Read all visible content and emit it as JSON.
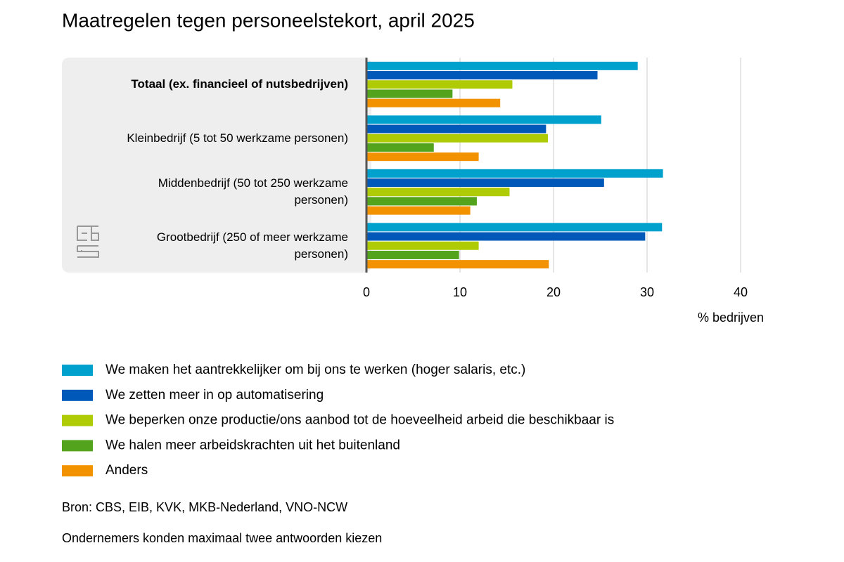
{
  "chart_data": {
    "type": "bar",
    "title": "Maatregelen tegen personeelstekort, april 2025",
    "categories": [
      "Totaal (ex. financieel of nutsbedrijven)",
      "Kleinbedrijf (5 tot 50 werkzame personen)",
      "Middenbedrijf (50 tot 250 werkzame personen)",
      "Grootbedrijf (250 of meer werkzame personen)"
    ],
    "series": [
      {
        "name": "We maken het aantrekkelijker om bij ons te werken (hoger salaris, etc.)",
        "color": "#00a1cd",
        "values": [
          29.0,
          25.1,
          31.7,
          31.6
        ]
      },
      {
        "name": "We zetten meer in op automatisering",
        "color": "#0058b8",
        "values": [
          24.7,
          19.2,
          25.4,
          29.8
        ]
      },
      {
        "name": "We beperken onze productie/ons aanbod tot de hoeveelheid arbeid die beschikbaar is",
        "color": "#afcb05",
        "values": [
          15.6,
          19.4,
          15.3,
          12.0
        ]
      },
      {
        "name": "We halen meer arbeidskrachten uit het buitenland",
        "color": "#53a31d",
        "values": [
          9.2,
          7.2,
          11.8,
          9.9
        ]
      },
      {
        "name": "Anders",
        "color": "#f39200",
        "values": [
          14.3,
          12.0,
          11.1,
          19.5
        ]
      }
    ],
    "xlim": [
      0,
      40
    ],
    "xticks": [
      0,
      10,
      20,
      30,
      40
    ],
    "grid": true,
    "x_label": "% bedrijven",
    "source": "Bron: CBS, EIB, KVK, MKB-Nederland, VNO-NCW",
    "note": "Ondernemers konden maximaal twee antwoorden kiezen"
  }
}
